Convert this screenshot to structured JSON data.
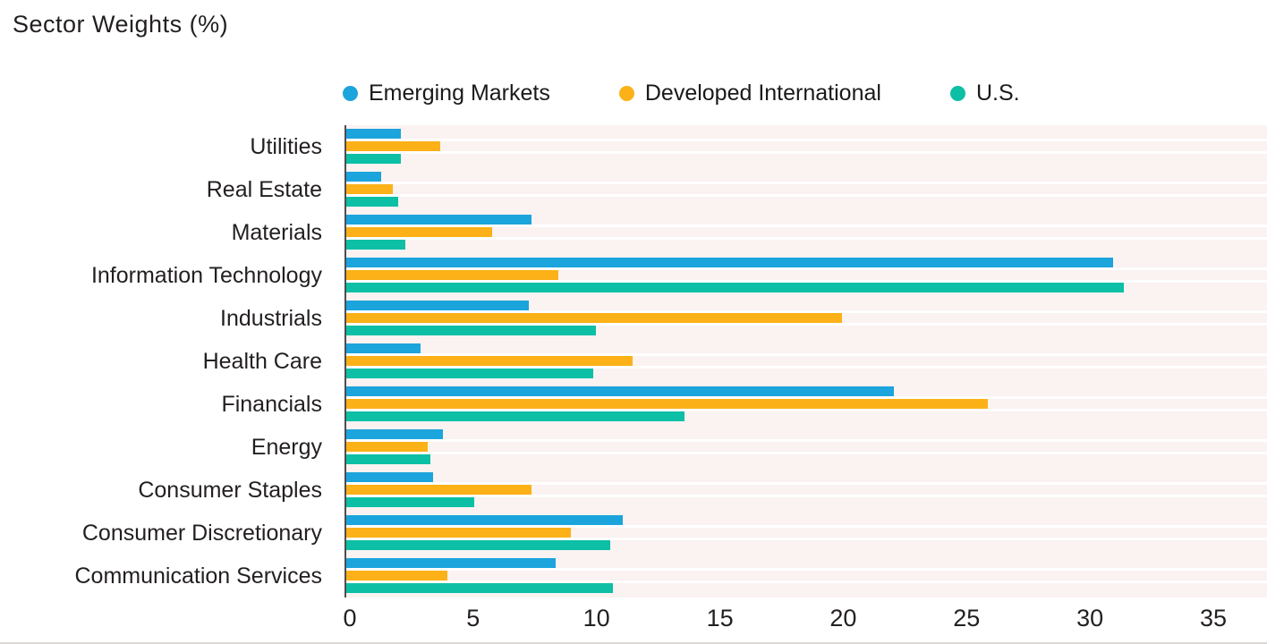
{
  "title": "Sector Weights (%)",
  "legend": [
    {
      "name": "Emerging Markets",
      "color": "#1CA4DC"
    },
    {
      "name": "Developed International",
      "color": "#FBB117"
    },
    {
      "name": "U.S.",
      "color": "#0CBFA5"
    }
  ],
  "colors": {
    "plot_background": "#FAF3F1",
    "axis_line": "#4D4D4F",
    "text": "#231F20",
    "bar_gap": "#FFFFFF"
  },
  "chart_data": {
    "type": "bar",
    "orientation": "horizontal",
    "title": "Sector Weights (%)",
    "xlabel": "",
    "ylabel": "",
    "grid": false,
    "legend_position": "top",
    "xlim": [
      0,
      37.3
    ],
    "x_ticks": [
      0,
      5,
      10,
      15,
      20,
      25,
      30,
      35
    ],
    "categories": [
      "Utilities",
      "Real Estate",
      "Materials",
      "Information Technology",
      "Industrials",
      "Health Care",
      "Financials",
      "Energy",
      "Consumer Staples",
      "Consumer Discretionary",
      "Communication Services"
    ],
    "series": [
      {
        "name": "Emerging Markets",
        "color": "#1CA4DC",
        "values": [
          2.2,
          1.4,
          7.5,
          31.1,
          7.4,
          3.0,
          22.2,
          3.9,
          3.5,
          11.2,
          8.5
        ]
      },
      {
        "name": "Developed International",
        "color": "#FBB117",
        "values": [
          3.8,
          1.9,
          5.9,
          8.6,
          20.1,
          11.6,
          26.0,
          3.3,
          7.5,
          9.1,
          4.1
        ]
      },
      {
        "name": "U.S.",
        "color": "#0CBFA5",
        "values": [
          2.2,
          2.1,
          2.4,
          31.5,
          10.1,
          10.0,
          13.7,
          3.4,
          5.2,
          10.7,
          10.8
        ]
      }
    ]
  }
}
